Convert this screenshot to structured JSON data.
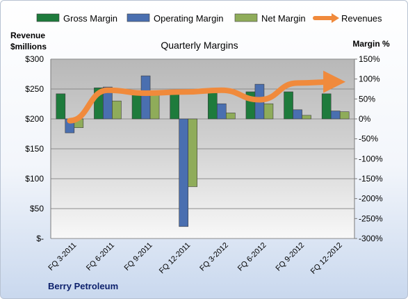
{
  "chart_data": {
    "type": "bar",
    "title": "Quarterly Margins",
    "categories": [
      "FQ 3-2011",
      "FQ 6-2011",
      "FQ 9-2011",
      "FQ 12-2011",
      "FQ 3-2012",
      "FQ 6-2012",
      "FQ 9-2012",
      "FQ 12-2012"
    ],
    "series": [
      {
        "name": "Gross Margin",
        "axis": "right",
        "type": "bar",
        "color": "#1e7b3c",
        "values": [
          63,
          78,
          70,
          72,
          74,
          68,
          68,
          63
        ]
      },
      {
        "name": "Operating Margin",
        "axis": "right",
        "type": "bar",
        "color": "#4a6fb0",
        "values": [
          -35,
          80,
          108,
          -270,
          38,
          87,
          23,
          20
        ]
      },
      {
        "name": "Net Margin",
        "axis": "right",
        "type": "bar",
        "color": "#8fac5a",
        "values": [
          -22,
          45,
          62,
          -170,
          15,
          38,
          9,
          18
        ]
      },
      {
        "name": "Revenues",
        "axis": "left",
        "type": "line",
        "color": "#f08a3c",
        "values": [
          197,
          248,
          243,
          245,
          248,
          232,
          260,
          262
        ]
      }
    ],
    "left_axis": {
      "label": "Revenue $millions",
      "label_lines": [
        "Revenue",
        "$millions"
      ],
      "ticks": [
        "$300",
        "$250",
        "$200",
        "$150",
        "$100",
        "$50",
        "$-"
      ],
      "ylim": [
        0,
        300
      ]
    },
    "right_axis": {
      "label": "Margin %",
      "ticks": [
        "150%",
        "100%",
        "50%",
        "0%",
        "-50%",
        "-100%",
        "-150%",
        "-200%",
        "-250%",
        "-300%"
      ],
      "ylim": [
        -300,
        150
      ]
    },
    "legend_position": "top",
    "grid": true,
    "footer": "Berry Petroleum"
  }
}
